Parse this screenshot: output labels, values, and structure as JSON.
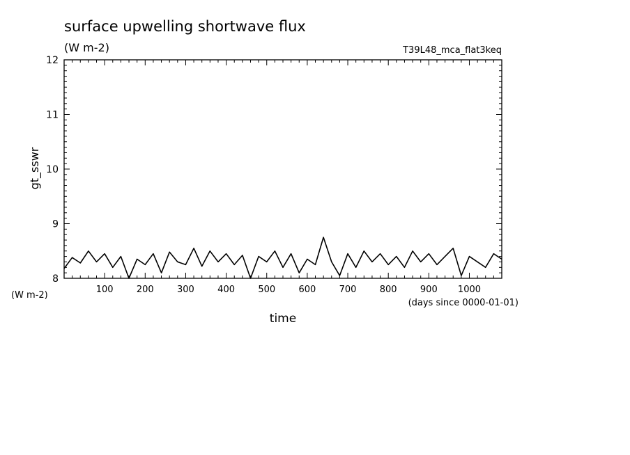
{
  "header": {
    "title": "surface upwelling shortwave flux",
    "units": "(W m-2)",
    "run_name": "T39L48_mca_flat3keq"
  },
  "chart_data": {
    "type": "line",
    "title": "surface upwelling shortwave flux",
    "ylabel": "gt_sswr",
    "yunits": "(W m-2)",
    "xlabel": "time",
    "xunits": "(days since 0000-01-01)",
    "xlim": [
      0,
      1080
    ],
    "ylim": [
      8,
      12
    ],
    "xticks": [
      100,
      200,
      300,
      400,
      500,
      600,
      700,
      800,
      900,
      1000
    ],
    "xtick_labels": [
      "100",
      "200",
      "300",
      "400",
      "500",
      "600",
      "700",
      "800",
      "900",
      "1000"
    ],
    "yticks": [
      8,
      9,
      10,
      11,
      12
    ],
    "ytick_labels": [
      "8",
      "9",
      "10",
      "11",
      "12"
    ],
    "grid": false,
    "legend": "none",
    "line_color": "#000000",
    "series": [
      {
        "x": [
          0,
          20,
          40,
          60,
          80,
          100,
          120,
          140,
          160,
          180,
          200,
          220,
          240,
          260,
          280,
          300,
          320,
          340,
          360,
          380,
          400,
          420,
          440,
          460,
          480,
          500,
          520,
          540,
          560,
          580,
          600,
          620,
          640,
          660,
          680,
          700,
          720,
          740,
          760,
          780,
          800,
          820,
          840,
          860,
          880,
          900,
          920,
          940,
          960,
          980,
          1000,
          1020,
          1040,
          1060,
          1080
        ],
        "values": [
          8.18,
          8.38,
          8.28,
          8.5,
          8.3,
          8.45,
          8.2,
          8.4,
          7.98,
          8.35,
          8.25,
          8.45,
          8.1,
          8.48,
          8.3,
          8.25,
          8.55,
          8.22,
          8.5,
          8.3,
          8.45,
          8.25,
          8.42,
          8.0,
          8.4,
          8.3,
          8.5,
          8.2,
          8.45,
          8.1,
          8.35,
          8.25,
          8.75,
          8.3,
          8.05,
          8.45,
          8.2,
          8.5,
          8.3,
          8.45,
          8.25,
          8.4,
          8.2,
          8.5,
          8.3,
          8.45,
          8.25,
          8.4,
          8.55,
          8.05,
          8.4,
          8.3,
          8.2,
          8.45,
          8.35
        ]
      }
    ]
  }
}
